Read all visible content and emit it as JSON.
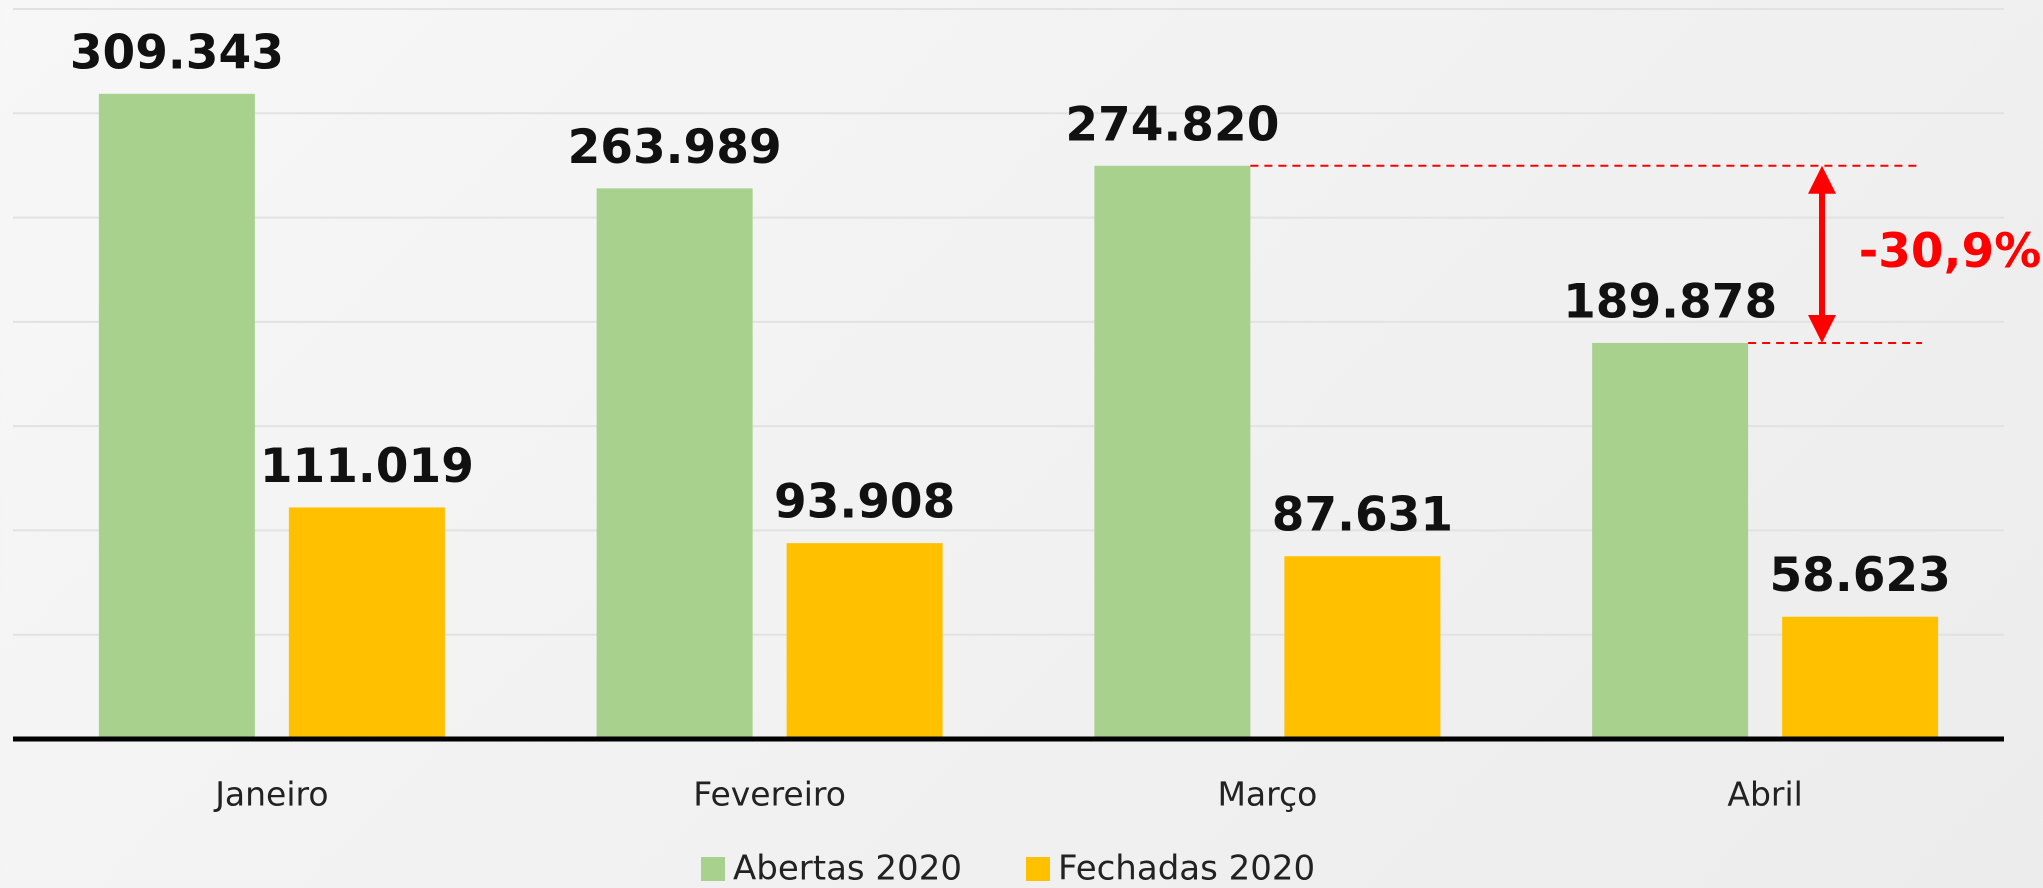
{
  "chart_data": {
    "type": "bar",
    "categories": [
      "Janeiro",
      "Fevereiro",
      "Março",
      "Abril"
    ],
    "series": [
      {
        "name": "Abertas 2020",
        "color": "#a9d18e",
        "values": [
          309343,
          263989,
          274820,
          189878
        ],
        "value_labels": [
          "309.343",
          "263.989",
          "274.820",
          "189.878"
        ]
      },
      {
        "name": "Fechadas 2020",
        "color": "#ffc000",
        "values": [
          111019,
          93908,
          87631,
          58623
        ],
        "value_labels": [
          "111.019",
          "93.908",
          "87.631",
          "58.623"
        ]
      }
    ],
    "ylim": [
      0,
      350000
    ],
    "yticks": [
      0,
      50000,
      100000,
      150000,
      200000,
      250000,
      300000,
      350000
    ],
    "grid": true,
    "legend": "bottom",
    "annotation": {
      "text": "-30,9%",
      "color": "#ff0000"
    }
  }
}
